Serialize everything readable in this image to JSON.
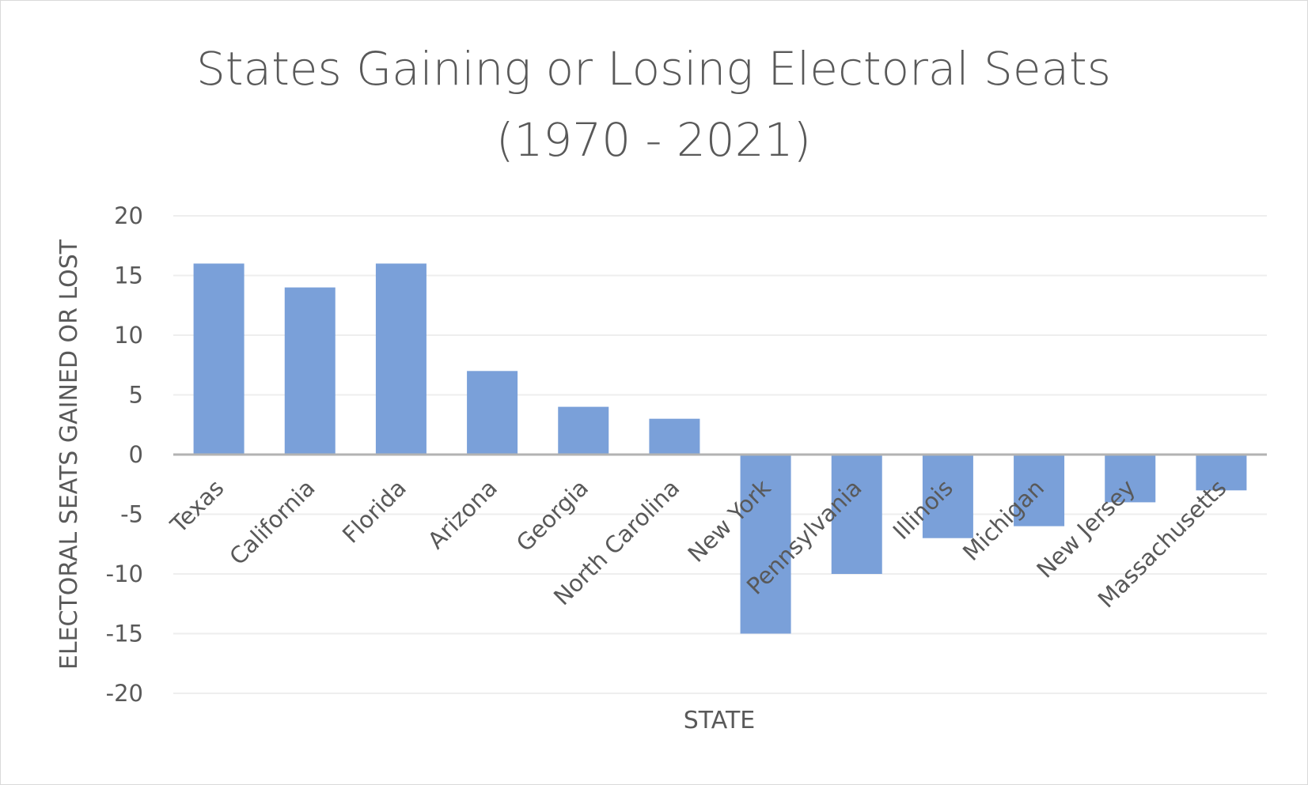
{
  "chart_data": {
    "type": "bar",
    "title": [
      "States Gaining or Losing Electoral Seats",
      "(1970 - 2021)"
    ],
    "xlabel": "STATE",
    "ylabel": "ELECTORAL SEATS GAINED OR LOST",
    "categories": [
      "Texas",
      "California",
      "Florida",
      "Arizona",
      "Georgia",
      "North Carolina",
      "New York",
      "Pennsylvania",
      "Illinois",
      "Michigan",
      "New Jersey",
      "Massachusetts"
    ],
    "values": [
      16,
      14,
      16,
      7,
      4,
      3,
      -15,
      -10,
      -7,
      -6,
      -4,
      -3
    ],
    "ylim": [
      -20,
      20
    ],
    "yticks": [
      20,
      15,
      10,
      5,
      0,
      -5,
      -10,
      -15,
      -20
    ],
    "grid": true,
    "legend": "none",
    "colors": {
      "bar": "#7aa0d9",
      "zero_axis": "#b3b3b3",
      "gridline": "#eeeeee",
      "text": "#595959"
    }
  }
}
